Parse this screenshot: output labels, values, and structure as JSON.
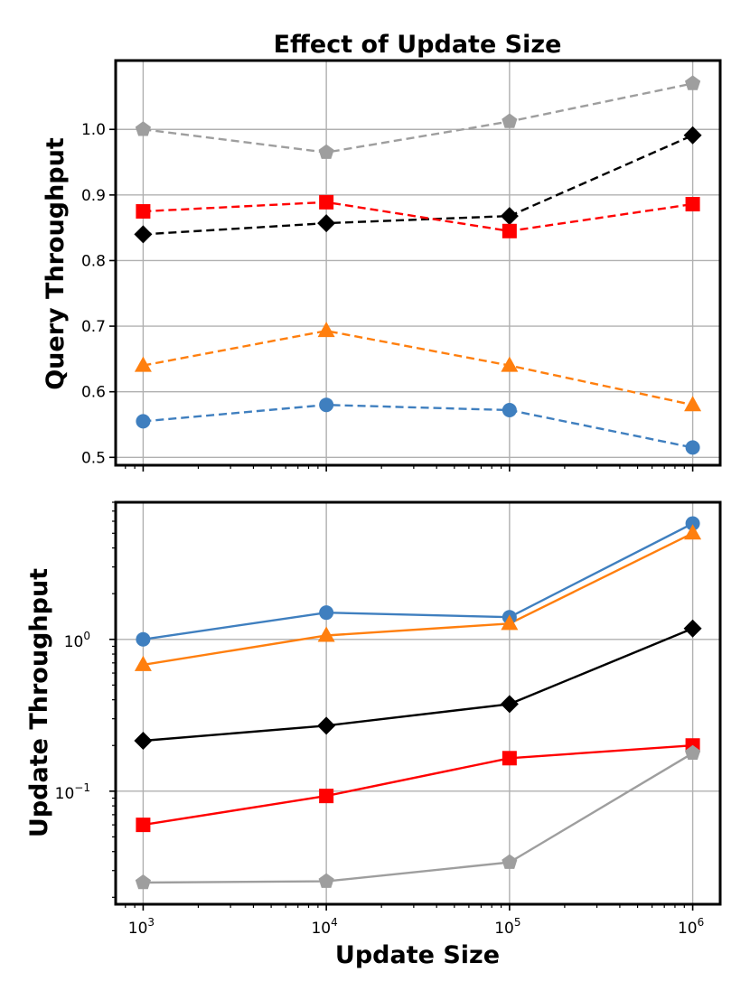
{
  "chart_data": [
    {
      "type": "line",
      "title": "Effect of Update Size",
      "ylabel": "Query Throughput",
      "xlabel": "",
      "xscale": "log",
      "yscale": "linear",
      "ylim": [
        0.488,
        1.105
      ],
      "yticks": [
        0.5,
        0.6,
        0.7,
        0.8,
        0.9,
        1.0
      ],
      "ytick_labels": [
        "0.5",
        "0.6",
        "0.7",
        "0.8",
        "0.9",
        "1.0"
      ],
      "x": [
        1000,
        10000,
        100000,
        1000000
      ],
      "line_style": "dashed",
      "grid": true,
      "series": [
        {
          "color": "#9e9e9e",
          "marker": "pentagon",
          "values": [
            1.0,
            0.965,
            1.012,
            1.07
          ]
        },
        {
          "color": "#000000",
          "marker": "diamond",
          "values": [
            0.84,
            0.857,
            0.868,
            0.991
          ]
        },
        {
          "color": "#ff0000",
          "marker": "square",
          "values": [
            0.875,
            0.889,
            0.845,
            0.886
          ]
        },
        {
          "color": "#ff7f0e",
          "marker": "triangle",
          "values": [
            0.64,
            0.693,
            0.64,
            0.58
          ]
        },
        {
          "color": "#3f7fbf",
          "marker": "circle",
          "values": [
            0.555,
            0.58,
            0.572,
            0.515
          ]
        }
      ]
    },
    {
      "type": "line",
      "title": "",
      "ylabel": "Update Throughput",
      "xlabel": "Update Size",
      "xscale": "log",
      "yscale": "log",
      "ylim": [
        0.018,
        8.0
      ],
      "yticks": [
        0.1,
        1.0
      ],
      "ytick_labels": [
        {
          "base": "10",
          "exp": "−1"
        },
        {
          "base": "10",
          "exp": "0"
        }
      ],
      "x": [
        1000,
        10000,
        100000,
        1000000
      ],
      "xtick_labels": [
        {
          "base": "10",
          "exp": "3"
        },
        {
          "base": "10",
          "exp": "4"
        },
        {
          "base": "10",
          "exp": "5"
        },
        {
          "base": "10",
          "exp": "6"
        }
      ],
      "line_style": "solid",
      "grid": true,
      "series": [
        {
          "color": "#3f7fbf",
          "marker": "circle",
          "values": [
            1.0,
            1.5,
            1.4,
            5.8
          ]
        },
        {
          "color": "#ff7f0e",
          "marker": "triangle",
          "values": [
            0.68,
            1.06,
            1.27,
            5.0
          ]
        },
        {
          "color": "#000000",
          "marker": "diamond",
          "values": [
            0.215,
            0.27,
            0.375,
            1.18
          ]
        },
        {
          "color": "#ff0000",
          "marker": "square",
          "values": [
            0.06,
            0.093,
            0.165,
            0.2
          ]
        },
        {
          "color": "#9e9e9e",
          "marker": "pentagon",
          "values": [
            0.025,
            0.0255,
            0.034,
            0.178
          ]
        }
      ]
    }
  ]
}
